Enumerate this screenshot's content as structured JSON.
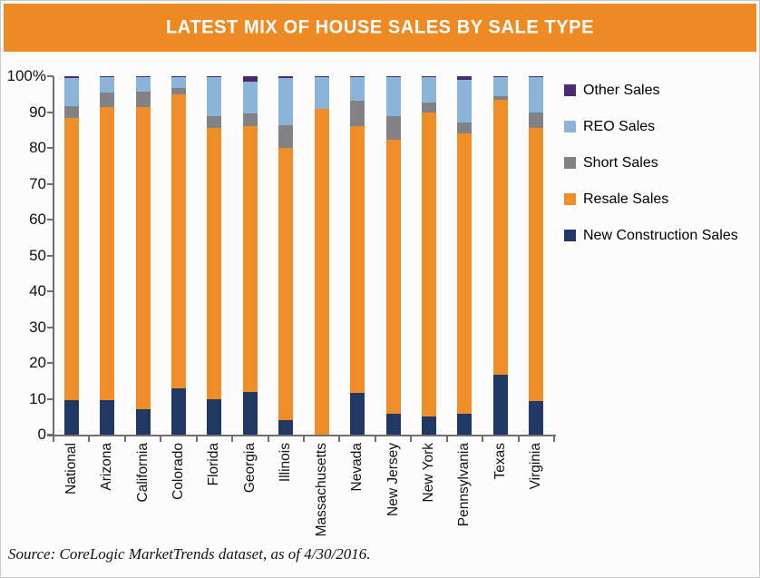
{
  "header": {
    "title": "LATEST MIX OF HOUSE SALES BY SALE TYPE"
  },
  "source_note": "Source: CoreLogic MarketTrends dataset, as of 4/30/2016.",
  "colors": {
    "header_bg": "#ED8A24",
    "new_construction": "#1F3864",
    "resale": "#EF8D28",
    "short": "#808285",
    "reo": "#8AB4D8",
    "other": "#4B2A74",
    "axis": "#6F6F6F"
  },
  "chart_data": {
    "type": "bar",
    "stacked": true,
    "title": "LATEST MIX OF HOUSE SALES BY SALE TYPE",
    "xlabel": "",
    "ylabel": "",
    "ylim": [
      0,
      100
    ],
    "y_ticks": [
      "100%",
      "90",
      "80",
      "70",
      "60",
      "50",
      "40",
      "30",
      "20",
      "10",
      "0"
    ],
    "grid": false,
    "legend_position": "right",
    "legend_order": [
      "Other Sales",
      "REO Sales",
      "Short Sales",
      "Resale Sales",
      "New Construction Sales"
    ],
    "categories": [
      "National",
      "Arizona",
      "California",
      "Colorado",
      "Florida",
      "Georgia",
      "Illinois",
      "Massachusetts",
      "Nevada",
      "New Jersey",
      "New York",
      "Pennsylvania",
      "Texas",
      "Virginia"
    ],
    "series": [
      {
        "name": "New Construction Sales",
        "color": "#1F3864",
        "values": [
          9.5,
          9.5,
          7.0,
          13.0,
          10.0,
          12.0,
          4.0,
          0.0,
          11.7,
          5.8,
          5.0,
          5.8,
          16.8,
          9.4
        ]
      },
      {
        "name": "Resale Sales",
        "color": "#EF8D28",
        "values": [
          78.8,
          82.0,
          84.5,
          82.0,
          75.5,
          74.0,
          76.0,
          91.0,
          74.5,
          76.5,
          85.0,
          78.2,
          76.5,
          76.3
        ]
      },
      {
        "name": "Short Sales",
        "color": "#808285",
        "values": [
          3.3,
          4.0,
          4.2,
          1.7,
          3.4,
          3.7,
          6.4,
          0.0,
          7.0,
          6.6,
          2.7,
          3.2,
          1.1,
          4.3
        ]
      },
      {
        "name": "REO Sales",
        "color": "#8AB4D8",
        "values": [
          7.8,
          4.2,
          4.0,
          3.0,
          10.8,
          8.7,
          13.0,
          8.7,
          6.6,
          10.9,
          7.0,
          11.9,
          5.3,
          9.7
        ]
      },
      {
        "name": "Other Sales",
        "color": "#4B2A74",
        "values": [
          0.6,
          0.3,
          0.3,
          0.3,
          0.3,
          1.6,
          0.6,
          0.3,
          0.2,
          0.2,
          0.3,
          0.9,
          0.3,
          0.3
        ]
      }
    ]
  }
}
